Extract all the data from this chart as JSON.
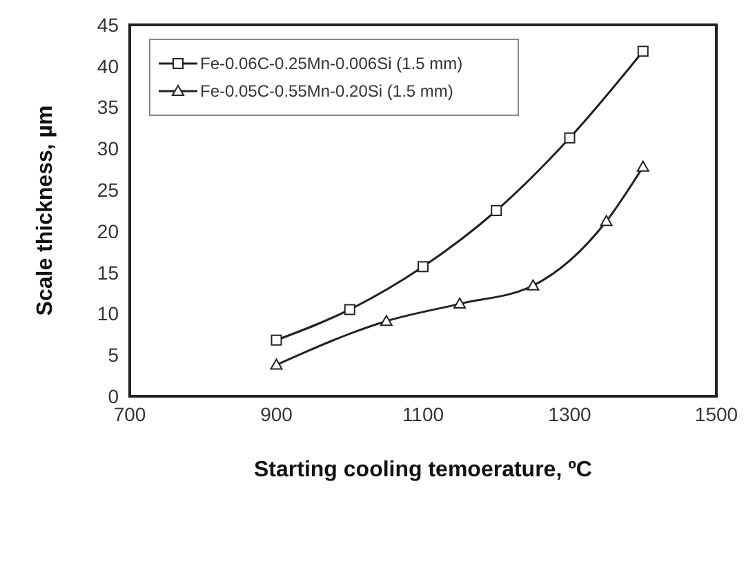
{
  "chart_data": {
    "type": "line",
    "xlabel": "Starting cooling temoerature, ºC",
    "ylabel": "Scale thickness, µm",
    "xlim": [
      700,
      1500
    ],
    "xticks": [
      700,
      900,
      1100,
      1300,
      1500
    ],
    "ylim": [
      0,
      45
    ],
    "yticks": [
      0,
      5,
      10,
      15,
      20,
      25,
      30,
      35,
      40,
      45
    ],
    "grid": false,
    "legend": "top left",
    "line_style": "solid",
    "series": [
      {
        "name": "Fe-0.06C-0.25Mn-0.006Si (1.5 mm)",
        "color": "#222222",
        "marker": "square",
        "x": [
          900,
          1000,
          1100,
          1200,
          1300,
          1400
        ],
        "values": [
          6.8,
          10.5,
          15.7,
          22.5,
          31.3,
          41.8
        ]
      },
      {
        "name": "Fe-0.05C-0.55Mn-0.20Si (1.5 mm)",
        "color": "#222222",
        "marker": "triangle",
        "x": [
          900,
          1050,
          1150,
          1250,
          1350,
          1400
        ],
        "values": [
          3.8,
          9.1,
          11.2,
          13.4,
          21.2,
          27.8
        ]
      }
    ]
  }
}
